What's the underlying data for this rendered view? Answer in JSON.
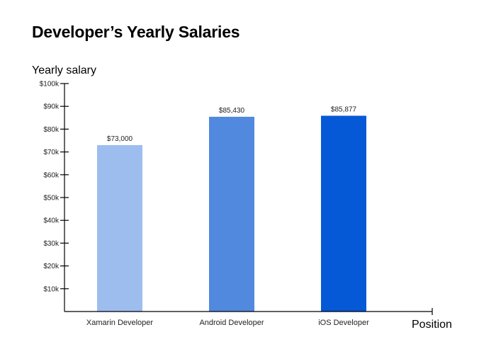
{
  "chart_data": {
    "type": "bar",
    "title": "Developer’s Yearly Salaries",
    "xlabel": "Position",
    "ylabel": "Yearly salary",
    "categories": [
      "Xamarin Developer",
      "Android Developer",
      "iOS Developer"
    ],
    "values": [
      73000,
      85430,
      85877
    ],
    "value_labels": [
      "$73,000",
      "$85,430",
      "$85,877"
    ],
    "colors": [
      "#9dbdee",
      "#5189de",
      "#0559d6"
    ],
    "ylim": [
      0,
      100000
    ],
    "yticks": [
      10000,
      20000,
      30000,
      40000,
      50000,
      60000,
      70000,
      80000,
      90000,
      100000
    ],
    "ytick_labels": [
      "$10k",
      "$20k",
      "$30k",
      "$40k",
      "$50k",
      "$60k",
      "$70k",
      "$80k",
      "$90k",
      "$100k"
    ],
    "grid": false,
    "legend": null
  }
}
